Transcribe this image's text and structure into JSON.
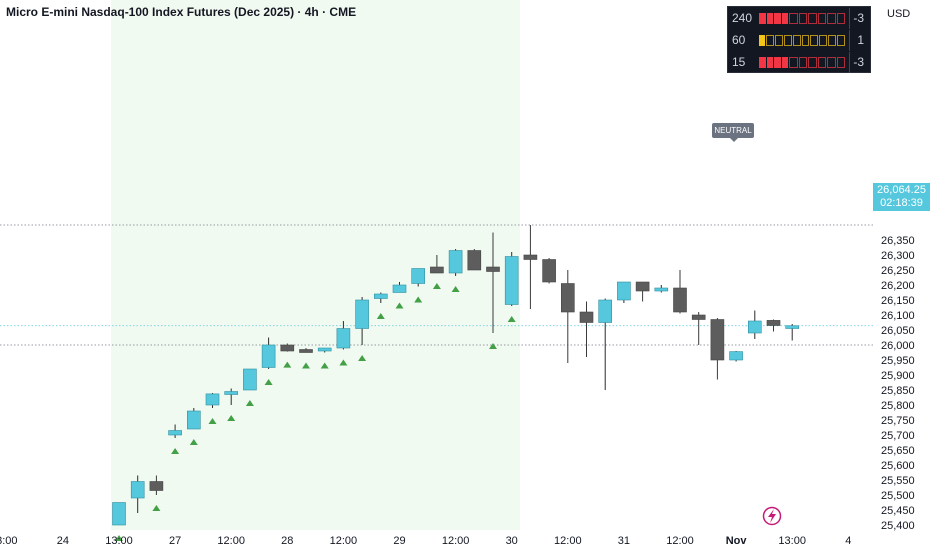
{
  "header": {
    "title": "Micro E-mini Nasdaq-100 Index Futures (Dec 2025) · 4h · CME"
  },
  "currency": "USD",
  "price_tag": {
    "price": "26,064.25",
    "countdown": "02:18:39"
  },
  "neutral_label": "NEUTRAL",
  "indicator": {
    "rows": [
      {
        "tf": "240",
        "value": "-3",
        "filled": 4,
        "state": "bear"
      },
      {
        "tf": "60",
        "value": "1",
        "filled": 1,
        "state": "neutral"
      },
      {
        "tf": "15",
        "value": "-3",
        "filled": 4,
        "state": "bear"
      }
    ],
    "colors": {
      "bear": "#f23645",
      "neutral": "#f5c518"
    }
  },
  "colors": {
    "up": "#56c8dd",
    "down": "#5d5d5d",
    "marker": "#43a047",
    "session": "#f1faf1"
  },
  "chart_data": {
    "type": "candlestick",
    "y_ticks": [
      25400,
      25450,
      25500,
      25550,
      25600,
      25650,
      25700,
      25750,
      25800,
      25850,
      25900,
      25950,
      26000,
      26050,
      26100,
      26150,
      26200,
      26250,
      26300,
      26350
    ],
    "x_ticks": [
      {
        "label": "3:00",
        "index": -6
      },
      {
        "label": "24",
        "index": -3
      },
      {
        "label": "13:00",
        "index": 0
      },
      {
        "label": "27",
        "index": 3
      },
      {
        "label": "12:00",
        "index": 6
      },
      {
        "label": "28",
        "index": 9
      },
      {
        "label": "12:00",
        "index": 12
      },
      {
        "label": "29",
        "index": 15
      },
      {
        "label": "12:00",
        "index": 18
      },
      {
        "label": "30",
        "index": 21
      },
      {
        "label": "12:00",
        "index": 24
      },
      {
        "label": "31",
        "index": 27
      },
      {
        "label": "12:00",
        "index": 30
      },
      {
        "label": "Nov",
        "index": 33,
        "bold": true
      },
      {
        "label": "13:00",
        "index": 36
      },
      {
        "label": "4",
        "index": 39
      }
    ],
    "reference_price": 26064.25,
    "dotted_levels": [
      26400,
      26000
    ],
    "candles": [
      {
        "o": 25400,
        "h": 25470,
        "l": 25400,
        "c": 25475
      },
      {
        "o": 25490,
        "h": 25565,
        "l": 25440,
        "c": 25545
      },
      {
        "o": 25545,
        "h": 25565,
        "l": 25500,
        "c": 25515
      },
      {
        "o": 25700,
        "h": 25735,
        "l": 25690,
        "c": 25715
      },
      {
        "o": 25720,
        "h": 25790,
        "l": 25720,
        "c": 25780
      },
      {
        "o": 25800,
        "h": 25840,
        "l": 25790,
        "c": 25837
      },
      {
        "o": 25835,
        "h": 25855,
        "l": 25800,
        "c": 25845
      },
      {
        "o": 25850,
        "h": 25920,
        "l": 25850,
        "c": 25920
      },
      {
        "o": 25925,
        "h": 26025,
        "l": 25920,
        "c": 26000
      },
      {
        "o": 26000,
        "h": 26005,
        "l": 25978,
        "c": 25980
      },
      {
        "o": 25985,
        "h": 25990,
        "l": 25975,
        "c": 25975
      },
      {
        "o": 25980,
        "h": 25990,
        "l": 25975,
        "c": 25990
      },
      {
        "o": 25990,
        "h": 26080,
        "l": 25985,
        "c": 26055
      },
      {
        "o": 26055,
        "h": 26160,
        "l": 26000,
        "c": 26150
      },
      {
        "o": 26155,
        "h": 26175,
        "l": 26140,
        "c": 26170
      },
      {
        "o": 26175,
        "h": 26210,
        "l": 26175,
        "c": 26200
      },
      {
        "o": 26205,
        "h": 26255,
        "l": 26195,
        "c": 26255
      },
      {
        "o": 26260,
        "h": 26300,
        "l": 26240,
        "c": 26240
      },
      {
        "o": 26240,
        "h": 26320,
        "l": 26230,
        "c": 26315
      },
      {
        "o": 26315,
        "h": 26320,
        "l": 26250,
        "c": 26250
      },
      {
        "o": 26260,
        "h": 26375,
        "l": 26040,
        "c": 26245
      },
      {
        "o": 26135,
        "h": 26310,
        "l": 26130,
        "c": 26295
      },
      {
        "o": 26300,
        "h": 26400,
        "l": 26120,
        "c": 26285
      },
      {
        "o": 26285,
        "h": 26290,
        "l": 26205,
        "c": 26210
      },
      {
        "o": 26205,
        "h": 26250,
        "l": 25940,
        "c": 26110
      },
      {
        "o": 26110,
        "h": 26145,
        "l": 25960,
        "c": 26075
      },
      {
        "o": 26075,
        "h": 26155,
        "l": 25850,
        "c": 26150
      },
      {
        "o": 26150,
        "h": 26210,
        "l": 26140,
        "c": 26210
      },
      {
        "o": 26210,
        "h": 26210,
        "l": 26145,
        "c": 26180
      },
      {
        "o": 26180,
        "h": 26200,
        "l": 26175,
        "c": 26190
      },
      {
        "o": 26190,
        "h": 26250,
        "l": 26105,
        "c": 26110
      },
      {
        "o": 26100,
        "h": 26110,
        "l": 26000,
        "c": 26085
      },
      {
        "o": 26085,
        "h": 26090,
        "l": 25885,
        "c": 25950
      },
      {
        "o": 25950,
        "h": 25980,
        "l": 25945,
        "c": 25978
      },
      {
        "o": 26040,
        "h": 26115,
        "l": 26020,
        "c": 26080
      },
      {
        "o": 26082,
        "h": 26085,
        "l": 26045,
        "c": 26065
      },
      {
        "o": 26055,
        "h": 26070,
        "l": 26015,
        "c": 26064.25
      }
    ],
    "buy_markers": [
      0,
      2,
      3,
      4,
      5,
      6,
      7,
      8,
      9,
      10,
      11,
      12,
      13,
      14,
      15,
      16,
      17,
      18,
      20,
      21
    ]
  }
}
